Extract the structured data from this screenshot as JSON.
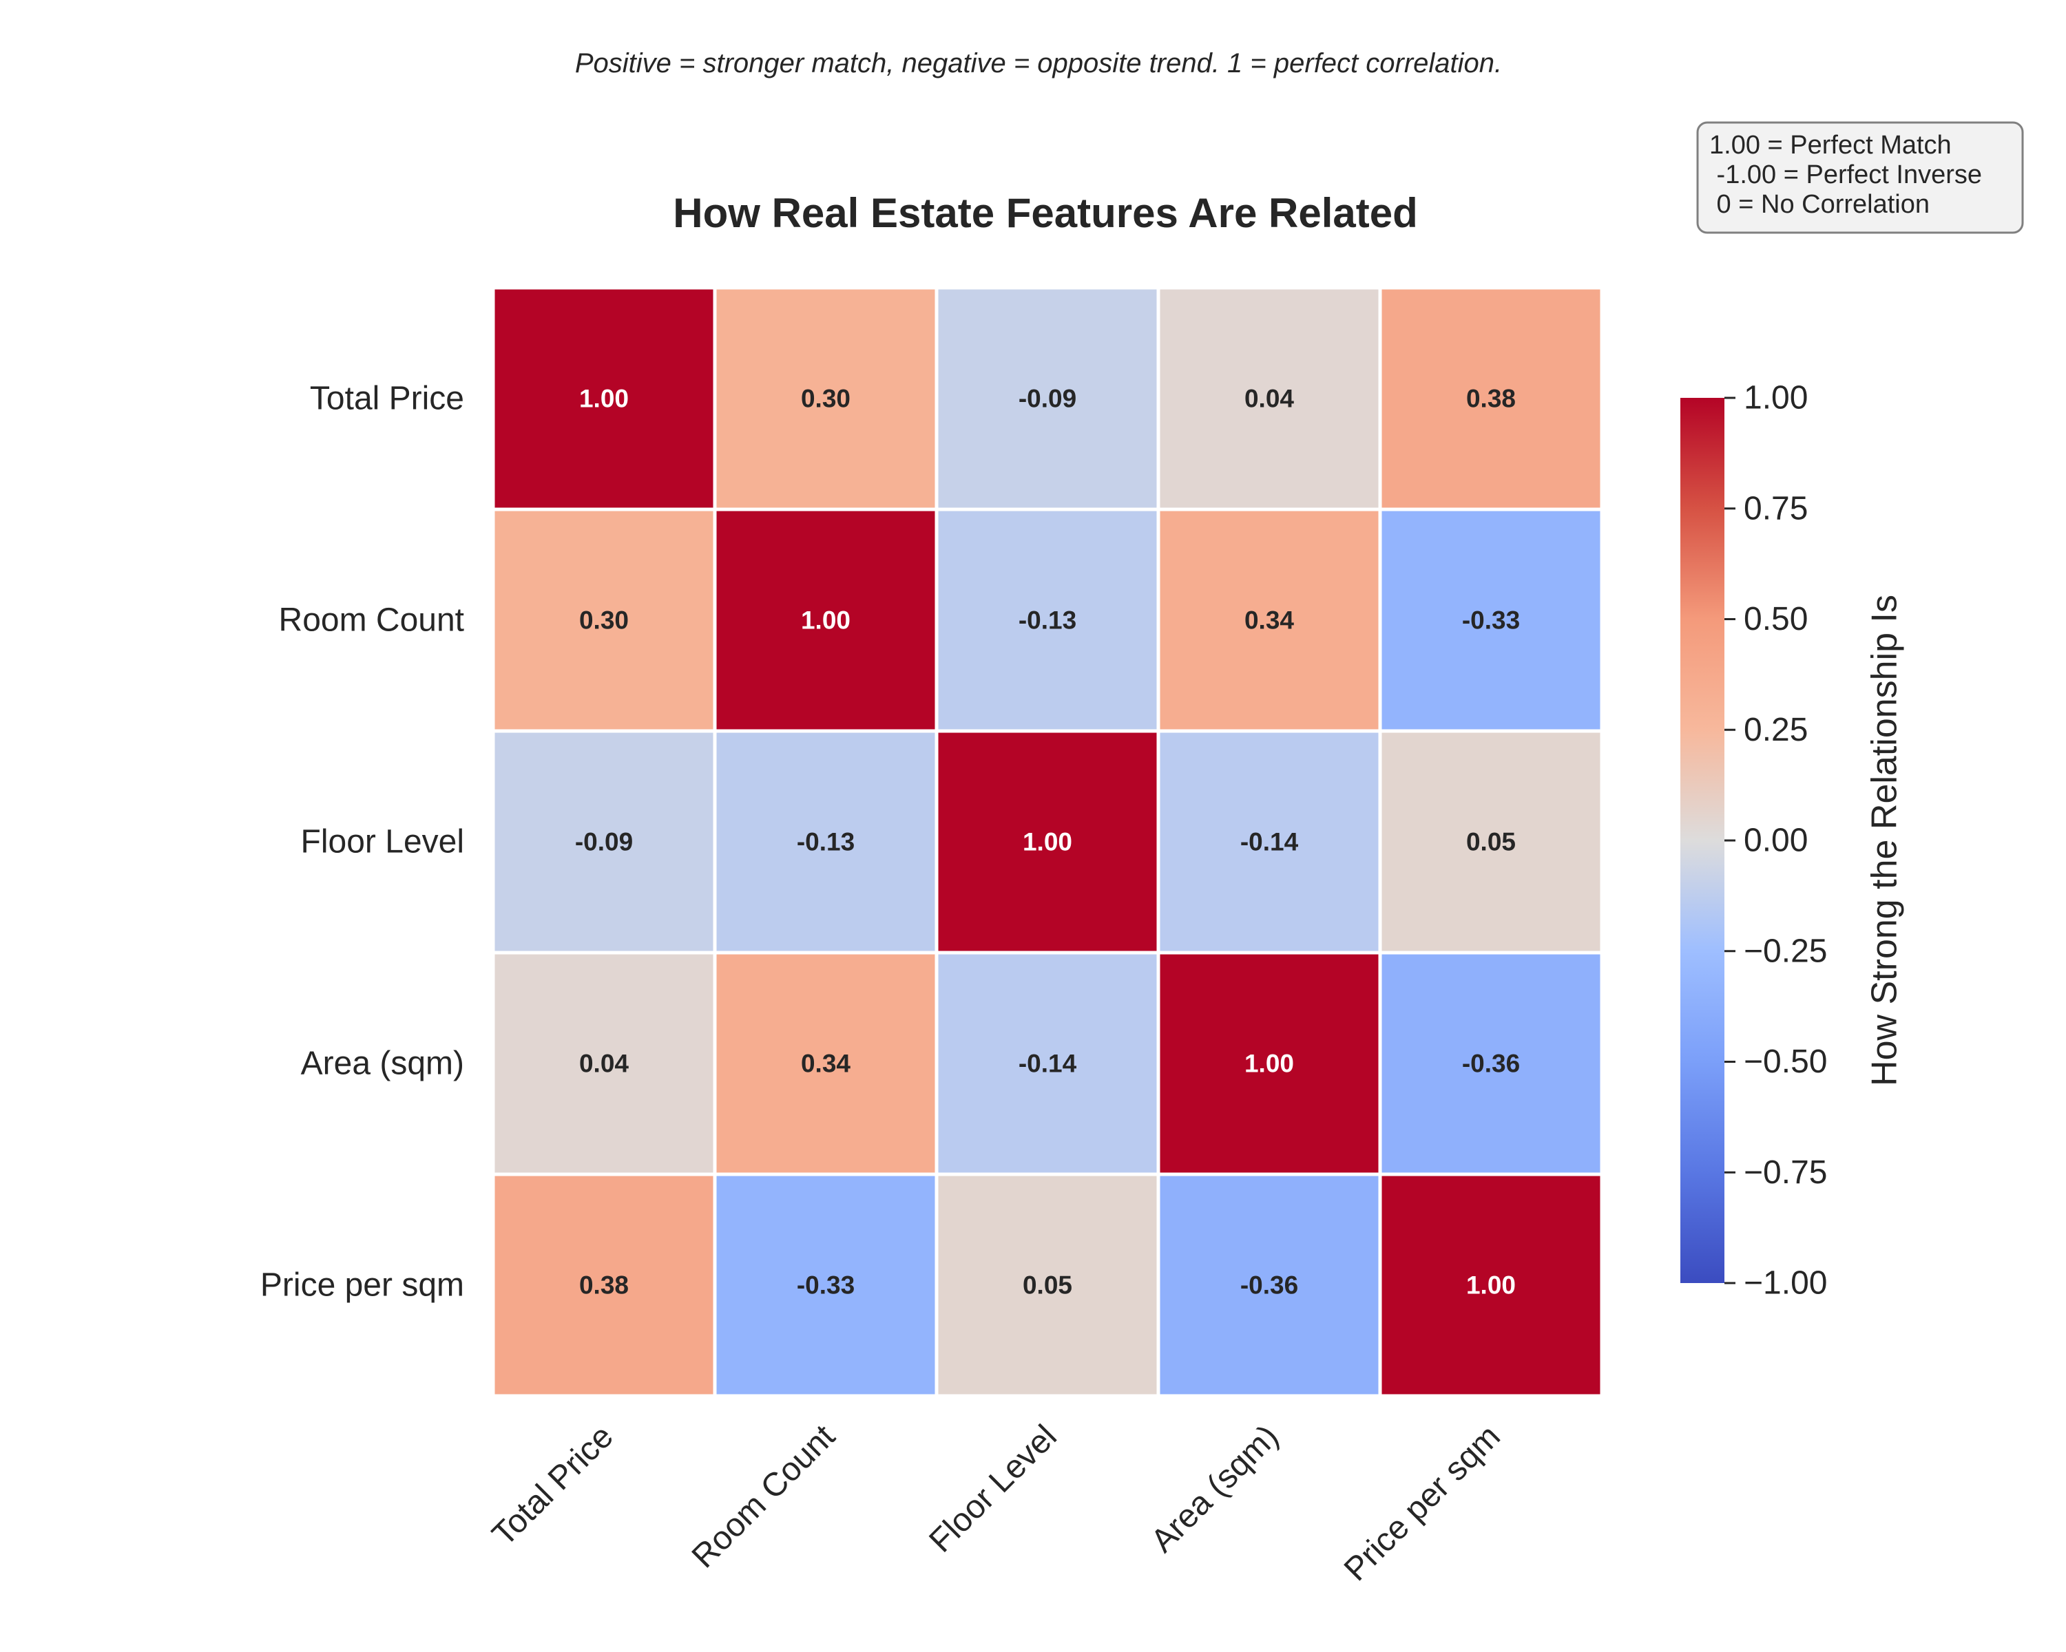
{
  "chart_data": {
    "type": "heatmap",
    "title": "How Real Estate Features Are Related",
    "subtitle": "Positive = stronger match, negative = opposite trend. 1 = perfect correlation.",
    "x_labels": [
      "Total Price",
      "Room Count",
      "Floor Level",
      "Area (sqm)",
      "Price per sqm"
    ],
    "y_labels": [
      "Total Price",
      "Room Count",
      "Floor Level",
      "Area (sqm)",
      "Price per sqm"
    ],
    "values": [
      [
        1.0,
        0.3,
        -0.09,
        0.04,
        0.38
      ],
      [
        0.3,
        1.0,
        -0.13,
        0.34,
        -0.33
      ],
      [
        -0.09,
        -0.13,
        1.0,
        -0.14,
        0.05
      ],
      [
        0.04,
        0.34,
        -0.14,
        1.0,
        -0.36
      ],
      [
        0.38,
        -0.33,
        0.05,
        -0.36,
        1.0
      ]
    ],
    "value_format": "0.00",
    "colormap": "coolwarm",
    "vmin": -1.0,
    "vmax": 1.0,
    "colorbar": {
      "label": "How Strong the Relationship Is",
      "ticks": [
        "1.00",
        "0.75",
        "0.50",
        "0.25",
        "0.00",
        "−0.25",
        "−0.50",
        "−0.75",
        "−1.00"
      ]
    },
    "legend": {
      "placement": "top-right",
      "lines": [
        "1.00 = Perfect Match",
        " -1.00 = Perfect Inverse",
        " 0 = No Correlation"
      ]
    }
  }
}
